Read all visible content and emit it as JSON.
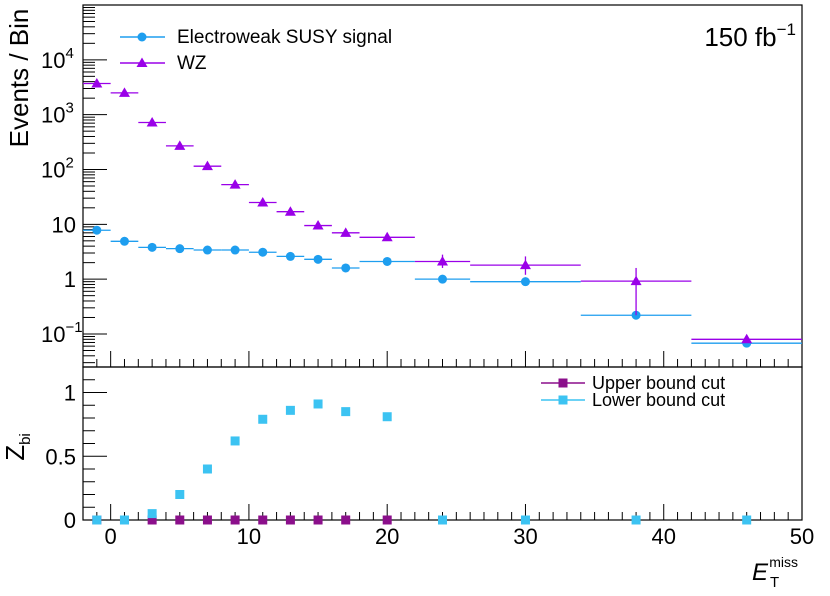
{
  "chart_data": [
    {
      "type": "scatter",
      "panel": "top",
      "ylabel": "Events / Bin",
      "yscale": "log",
      "ylim": [
        0.025,
        100000
      ],
      "xlim": [
        -2,
        50
      ],
      "annotation": {
        "base": "150 fb",
        "sup": "−1"
      },
      "legend_position": "top-left",
      "y_major_ticks": [
        {
          "value": 0.1,
          "base": "10",
          "sup": "−1"
        },
        {
          "value": 1,
          "base": "1",
          "sup": ""
        },
        {
          "value": 10,
          "base": "10",
          "sup": ""
        },
        {
          "value": 100,
          "base": "10",
          "sup": "2"
        },
        {
          "value": 1000,
          "base": "10",
          "sup": "3"
        },
        {
          "value": 10000,
          "base": "10",
          "sup": "4"
        }
      ],
      "series": [
        {
          "name": "Electroweak SUSY signal",
          "color": "#1e9eef",
          "marker": "circle",
          "points": [
            {
              "x": -1,
              "xlo": -2,
              "xhi": 0,
              "y": 7.8
            },
            {
              "x": 1,
              "xlo": 0,
              "xhi": 2,
              "y": 4.9
            },
            {
              "x": 3,
              "xlo": 2,
              "xhi": 4,
              "y": 3.8
            },
            {
              "x": 5,
              "xlo": 4,
              "xhi": 6,
              "y": 3.6
            },
            {
              "x": 7,
              "xlo": 6,
              "xhi": 8,
              "y": 3.4
            },
            {
              "x": 9,
              "xlo": 8,
              "xhi": 10,
              "y": 3.4
            },
            {
              "x": 11,
              "xlo": 10,
              "xhi": 12,
              "y": 3.1
            },
            {
              "x": 13,
              "xlo": 12,
              "xhi": 14,
              "y": 2.6
            },
            {
              "x": 15,
              "xlo": 14,
              "xhi": 16,
              "y": 2.3
            },
            {
              "x": 17,
              "xlo": 16,
              "xhi": 18,
              "y": 1.6
            },
            {
              "x": 20,
              "xlo": 18,
              "xhi": 22,
              "y": 2.1
            },
            {
              "x": 24,
              "xlo": 22,
              "xhi": 26,
              "y": 1.0
            },
            {
              "x": 30,
              "xlo": 26,
              "xhi": 34,
              "y": 0.9
            },
            {
              "x": 38,
              "xlo": 34,
              "xhi": 42,
              "y": 0.22
            },
            {
              "x": 46,
              "xlo": 42,
              "xhi": 50,
              "y": 0.068
            }
          ]
        },
        {
          "name": "WZ",
          "color": "#9a00e8",
          "marker": "triangle",
          "points": [
            {
              "x": -1,
              "xlo": -2,
              "xhi": 0,
              "y": 3700
            },
            {
              "x": 1,
              "xlo": 0,
              "xhi": 2,
              "y": 2500
            },
            {
              "x": 3,
              "xlo": 2,
              "xhi": 4,
              "y": 720
            },
            {
              "x": 5,
              "xlo": 4,
              "xhi": 6,
              "y": 270
            },
            {
              "x": 7,
              "xlo": 6,
              "xhi": 8,
              "y": 115
            },
            {
              "x": 9,
              "xlo": 8,
              "xhi": 10,
              "y": 53
            },
            {
              "x": 11,
              "xlo": 10,
              "xhi": 12,
              "y": 25
            },
            {
              "x": 13,
              "xlo": 12,
              "xhi": 14,
              "y": 17
            },
            {
              "x": 15,
              "xlo": 14,
              "xhi": 16,
              "y": 9.5
            },
            {
              "x": 17,
              "xlo": 16,
              "xhi": 18,
              "y": 7
            },
            {
              "x": 20,
              "xlo": 18,
              "xhi": 22,
              "y": 5.8
            },
            {
              "x": 24,
              "xlo": 22,
              "xhi": 26,
              "y": 2.1,
              "ylo": 1.6,
              "yhi": 2.8
            },
            {
              "x": 30,
              "xlo": 26,
              "xhi": 34,
              "y": 1.8,
              "ylo": 1.2,
              "yhi": 2.6
            },
            {
              "x": 38,
              "xlo": 34,
              "xhi": 42,
              "y": 0.92,
              "ylo": 0.22,
              "yhi": 1.6
            },
            {
              "x": 46,
              "xlo": 42,
              "xhi": 50,
              "y": 0.08
            }
          ]
        }
      ]
    },
    {
      "type": "scatter",
      "panel": "bottom",
      "ylabel": {
        "base": "Z",
        "sub": "bi"
      },
      "xlabel": {
        "base": "E",
        "sub": "T",
        "sup": "miss"
      },
      "yscale": "linear",
      "ylim": [
        0,
        1.2
      ],
      "xlim": [
        -2,
        50
      ],
      "x_ticks": [
        0,
        10,
        20,
        30,
        40,
        50
      ],
      "y_ticks": [
        0,
        0.5,
        1
      ],
      "legend_position": "top-right",
      "series": [
        {
          "name": "Upper bound cut",
          "color": "#8b0f8b",
          "marker": "square",
          "points": [
            {
              "x": -1,
              "y": 0
            },
            {
              "x": 1,
              "y": 0
            },
            {
              "x": 3,
              "y": 0
            },
            {
              "x": 5,
              "y": 0
            },
            {
              "x": 7,
              "y": 0
            },
            {
              "x": 9,
              "y": 0
            },
            {
              "x": 11,
              "y": 0
            },
            {
              "x": 13,
              "y": 0
            },
            {
              "x": 15,
              "y": 0
            },
            {
              "x": 17,
              "y": 0
            },
            {
              "x": 20,
              "y": 0
            }
          ]
        },
        {
          "name": "Lower bound cut",
          "color": "#3cc3f2",
          "marker": "square",
          "points": [
            {
              "x": -1,
              "y": 0
            },
            {
              "x": 1,
              "y": 0
            },
            {
              "x": 3,
              "y": 0.05
            },
            {
              "x": 5,
              "y": 0.2
            },
            {
              "x": 7,
              "y": 0.4
            },
            {
              "x": 9,
              "y": 0.62
            },
            {
              "x": 11,
              "y": 0.79
            },
            {
              "x": 13,
              "y": 0.86
            },
            {
              "x": 15,
              "y": 0.91
            },
            {
              "x": 17,
              "y": 0.85
            },
            {
              "x": 20,
              "y": 0.81
            },
            {
              "x": 24,
              "y": 0
            },
            {
              "x": 30,
              "y": 0
            },
            {
              "x": 38,
              "y": 0
            },
            {
              "x": 46,
              "y": 0
            }
          ]
        }
      ]
    }
  ]
}
